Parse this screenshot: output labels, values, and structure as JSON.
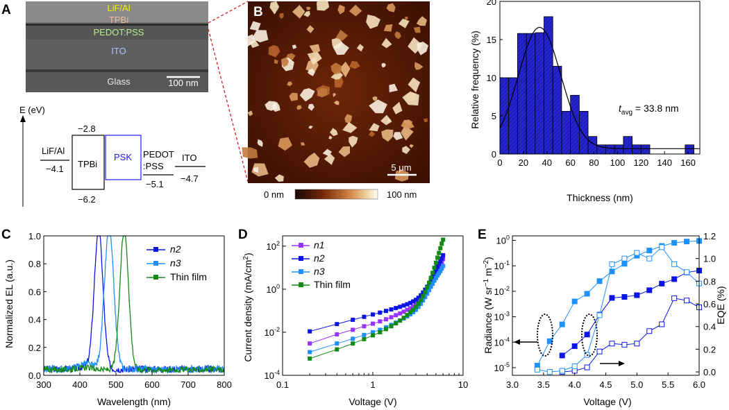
{
  "panels": {
    "A": "A",
    "B": "B",
    "C": "C",
    "D": "D",
    "E": "E"
  },
  "sem": {
    "layers": [
      "LiF/Al",
      "TPBi",
      "PEDOT:PSS",
      "ITO",
      "Glass"
    ],
    "scale": "100 nm"
  },
  "energy": {
    "axis_label": "E (eV)",
    "levels": {
      "lifal": "LiF/Al",
      "lifal_val": "−4.1",
      "tpbi": "TPBi",
      "tpbi_top": "−2.8",
      "tpbi_bot": "−6.2",
      "psk": "PSK",
      "pedot1": "PEDOT",
      "pedot2": ":PSS",
      "pedot_val": "−5.1",
      "ito": "ITO",
      "ito_val": "−4.7"
    },
    "colors": {
      "psk": "#1a1aff"
    }
  },
  "afm": {
    "scale": "5 μm",
    "colorbar_min": "0 nm",
    "colorbar_max": "100 nm"
  },
  "colors": {
    "bar": "#2525d0",
    "n1": "#9933ff",
    "n2": "#0a14e6",
    "n3": "#1e90ff",
    "film": "#138a13"
  },
  "chart_data": [
    {
      "type": "bar",
      "panel": "B-histogram",
      "xlabel": "Thickness (nm)",
      "ylabel": "Relative frequency (%)",
      "xlim": [
        0,
        170
      ],
      "ylim": [
        0,
        20
      ],
      "xticks": [
        "0",
        "20",
        "40",
        "60",
        "80",
        "100",
        "120",
        "140",
        "160"
      ],
      "yticks": [
        "0",
        "5",
        "10",
        "15",
        "20"
      ],
      "bin_width": 7.5,
      "x": [
        3.75,
        11.25,
        18.75,
        26.25,
        33.75,
        41.25,
        48.75,
        56.25,
        63.75,
        71.25,
        78.75,
        86.25,
        93.75,
        101.25,
        108.75,
        116.25,
        123.75,
        161.25
      ],
      "values": [
        10,
        10,
        15.8,
        15.8,
        15.9,
        18,
        11.5,
        5.6,
        7.7,
        5.6,
        2.3,
        1.2,
        1.2,
        1.2,
        2.3,
        1.2,
        1.2,
        1.2
      ],
      "fit": {
        "peak": 33.8,
        "amp": 15.9,
        "sigma": 18,
        "offset": 0.7
      },
      "annotation_t": "t",
      "annotation_sub": "avg",
      "annotation_rest": " = 33.8 nm"
    },
    {
      "type": "line",
      "panel": "C",
      "xlabel": "Wavelength (nm)",
      "ylabel": "Normalized EL (a.u.)",
      "xlim": [
        300,
        800
      ],
      "ylim": [
        0,
        1.0
      ],
      "xticks": [
        "300",
        "400",
        "500",
        "600",
        "700",
        "800"
      ],
      "yticks": [
        "0.0",
        "0.2",
        "0.4",
        "0.6",
        "0.8",
        "1.0"
      ],
      "series": [
        {
          "name": "n2",
          "peak": 452,
          "width": 12,
          "noise": 0.05
        },
        {
          "name": "n3",
          "peak": 481,
          "width": 13,
          "noise": 0.05
        },
        {
          "name": "Thin film",
          "peak": 523,
          "width": 12,
          "noise": 0.04
        }
      ]
    },
    {
      "type": "scatter",
      "panel": "D",
      "xlabel": "Voltage (V)",
      "ylabel": "Current density (mA/cm²)",
      "xscale": "log",
      "yscale": "log",
      "xlim": [
        0.1,
        10
      ],
      "ylim": [
        0.0001,
        300
      ],
      "xticks": [
        "0.1",
        "1",
        "10"
      ],
      "series": [
        {
          "name": "n1",
          "x": [
            0.2,
            0.4,
            0.6,
            0.8,
            1.0,
            1.2,
            1.4,
            1.6,
            1.8,
            2.0,
            2.2,
            2.4,
            2.6,
            2.8,
            3.0,
            3.2,
            3.4,
            3.6,
            3.8,
            4.0,
            4.2,
            4.4,
            4.6,
            4.8,
            5.0,
            5.2,
            5.4,
            5.6,
            5.8,
            6.0
          ],
          "y": [
            0.003,
            0.008,
            0.013,
            0.019,
            0.025,
            0.032,
            0.04,
            0.05,
            0.062,
            0.075,
            0.09,
            0.11,
            0.13,
            0.16,
            0.2,
            0.27,
            0.37,
            0.52,
            0.75,
            1.1,
            1.6,
            2.3,
            3.3,
            4.6,
            6.3,
            8.5,
            11,
            14,
            18,
            25
          ]
        },
        {
          "name": "n2",
          "x": [
            0.2,
            0.4,
            0.6,
            0.8,
            1.0,
            1.2,
            1.4,
            1.6,
            1.8,
            2.0,
            2.2,
            2.4,
            2.6,
            2.8,
            3.0,
            3.2,
            3.4,
            3.6,
            3.8,
            4.0,
            4.2,
            4.4,
            4.6,
            4.8,
            5.0,
            5.2,
            5.4,
            5.6,
            5.8,
            6.0
          ],
          "y": [
            0.011,
            0.024,
            0.038,
            0.052,
            0.067,
            0.082,
            0.098,
            0.115,
            0.133,
            0.152,
            0.175,
            0.2,
            0.23,
            0.27,
            0.32,
            0.4,
            0.52,
            0.7,
            0.95,
            1.3,
            1.8,
            2.6,
            3.7,
            5.3,
            7.6,
            11,
            15,
            20,
            27,
            38
          ]
        },
        {
          "name": "n3",
          "x": [
            0.2,
            0.4,
            0.6,
            0.8,
            1.0,
            1.2,
            1.4,
            1.6,
            1.8,
            2.0,
            2.2,
            2.4,
            2.6,
            2.8,
            3.0,
            3.2,
            3.4,
            3.6,
            3.8,
            4.0,
            4.2,
            4.4,
            4.6,
            4.8,
            5.0,
            5.2,
            5.4,
            5.6,
            5.8,
            6.0
          ],
          "y": [
            0.0012,
            0.003,
            0.005,
            0.0075,
            0.01,
            0.013,
            0.017,
            0.022,
            0.028,
            0.035,
            0.044,
            0.055,
            0.068,
            0.085,
            0.11,
            0.15,
            0.21,
            0.3,
            0.43,
            0.62,
            0.9,
            1.3,
            1.8,
            2.5,
            3.3,
            4.3,
            5.5,
            7,
            9,
            12
          ]
        },
        {
          "name": "Thin film",
          "x": [
            0.2,
            0.4,
            0.6,
            0.8,
            1.0,
            1.2,
            1.4,
            1.6,
            1.8,
            2.0,
            2.2,
            2.4,
            2.6,
            2.8,
            3.0,
            3.2,
            3.4,
            3.6,
            3.8,
            4.0,
            4.2,
            4.4,
            4.6,
            4.8,
            5.0,
            5.2,
            5.4,
            5.6,
            5.8,
            6.0
          ],
          "y": [
            0.0006,
            0.0016,
            0.003,
            0.0048,
            0.0072,
            0.01,
            0.014,
            0.019,
            0.026,
            0.035,
            0.047,
            0.063,
            0.085,
            0.11,
            0.15,
            0.21,
            0.31,
            0.47,
            0.75,
            1.2,
            2.0,
            3.4,
            5.8,
            10,
            17,
            29,
            48,
            80,
            130,
            200
          ]
        }
      ]
    },
    {
      "type": "scatter",
      "panel": "E",
      "xlabel": "Voltage (V)",
      "ylabel_left": "Radiance (W sr−1 m−2)",
      "ylabel_right": "EQE (%)",
      "xlim": [
        3.0,
        6.0
      ],
      "ylim_left": [
        5e-06,
        1.5
      ],
      "ylim_right": [
        -0.03,
        1.2
      ],
      "xticks": [
        "3.0",
        "3.5",
        "4.0",
        "4.5",
        "5.0",
        "5.5",
        "6.0"
      ],
      "yticks_right": [
        "0.0",
        "0.2",
        "0.4",
        "0.6",
        "0.8",
        "1.0",
        "1.2"
      ],
      "series": [
        {
          "name": "n2 radiance",
          "axis": "left",
          "filled": true,
          "color": "n2",
          "x": [
            3.8,
            4.0,
            4.2,
            4.4,
            4.6,
            4.8,
            5.0,
            5.2,
            5.4,
            5.6,
            5.8,
            6.0
          ],
          "y": [
            3e-05,
            7e-05,
            0.0002,
            0.0012,
            0.0055,
            0.006,
            0.007,
            0.011,
            0.02,
            0.03,
            0.055,
            0.065
          ]
        },
        {
          "name": "n3 radiance",
          "axis": "left",
          "filled": true,
          "color": "n3",
          "x": [
            3.4,
            3.6,
            3.8,
            4.0,
            4.2,
            4.4,
            4.6,
            4.8,
            5.0,
            5.2,
            5.4,
            5.6,
            5.8,
            6.0
          ],
          "y": [
            1.2e-05,
            0.00011,
            0.0005,
            0.004,
            0.008,
            0.025,
            0.06,
            0.12,
            0.25,
            0.4,
            0.6,
            0.8,
            0.9,
            0.95
          ]
        },
        {
          "name": "n2 EQE",
          "axis": "right",
          "filled": false,
          "color": "n2",
          "x": [
            3.8,
            4.0,
            4.2,
            4.4,
            4.6,
            4.8,
            5.0,
            5.2,
            5.4,
            5.6,
            5.8,
            6.0
          ],
          "y": [
            0.0,
            0.01,
            0.04,
            0.18,
            0.25,
            0.24,
            0.25,
            0.36,
            0.42,
            0.65,
            0.63,
            0.57
          ]
        },
        {
          "name": "n3 EQE",
          "axis": "right",
          "filled": false,
          "color": "n3",
          "x": [
            3.4,
            3.6,
            3.8,
            4.0,
            4.2,
            4.4,
            4.6,
            4.8,
            5.0,
            5.2,
            5.4,
            5.6,
            5.8,
            6.0
          ],
          "y": [
            0.02,
            0.0,
            0.01,
            0.05,
            0.15,
            0.5,
            0.95,
            1.0,
            1.05,
            1.0,
            1.1,
            0.95,
            0.88,
            0.78
          ]
        }
      ]
    }
  ]
}
